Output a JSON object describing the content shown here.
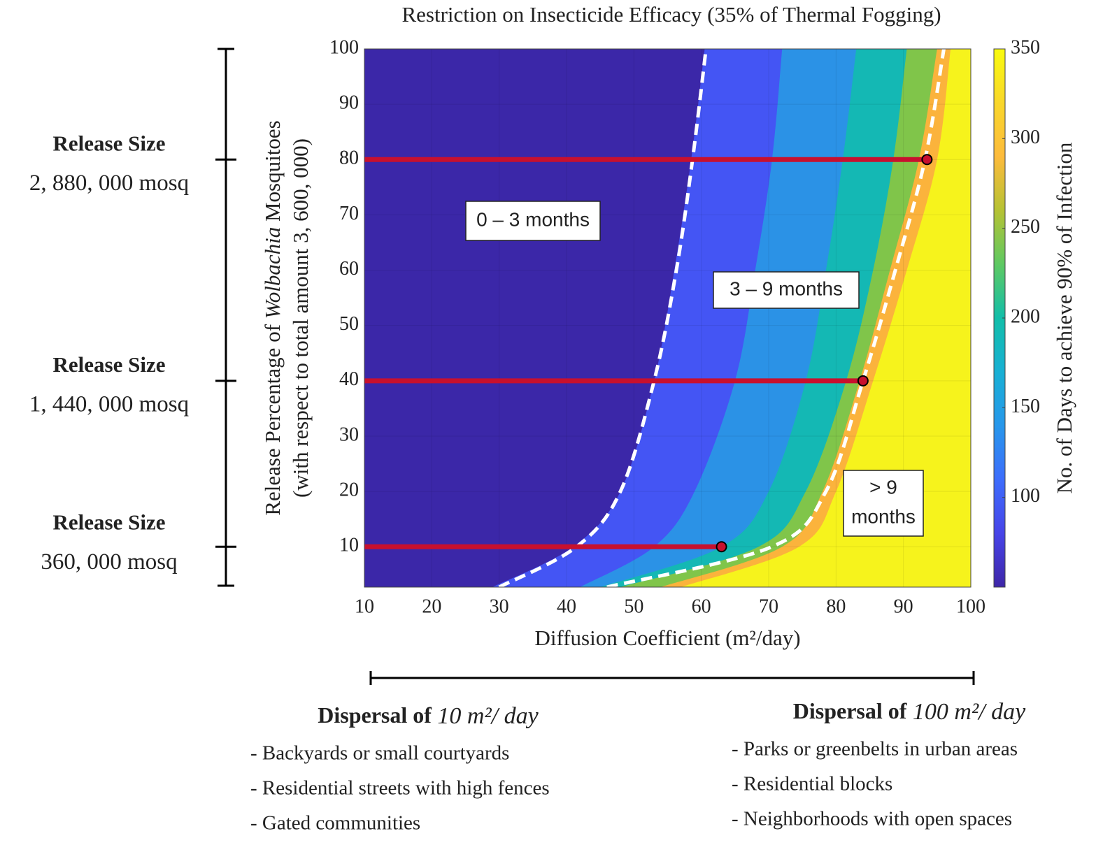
{
  "chart_data": {
    "type": "contour",
    "title": "Restriction on Insecticide Efficacy (35% of Thermal Fogging)",
    "xlabel": "Diffusion Coefficient (m²/day)",
    "ylabel": [
      "Release Percentage of",
      "Wolbachia",
      "Mosquitoes"
    ],
    "ylabel2": "(with respect to total amount 3, 600, 000)",
    "xlim": [
      10,
      100
    ],
    "ylim": [
      2.7,
      100
    ],
    "xticks": [
      10,
      20,
      30,
      40,
      50,
      60,
      70,
      80,
      90,
      100
    ],
    "yticks": [
      10,
      20,
      30,
      40,
      50,
      60,
      70,
      80,
      90,
      100
    ],
    "grid": true,
    "background_color": "#3b27a8",
    "y_levels": [
      2.7,
      10,
      20,
      40,
      60,
      80,
      100
    ],
    "bands": [
      {
        "color": "#4455f4",
        "x": [
          29,
          41,
          48,
          53,
          56,
          58.5,
          60.5
        ]
      },
      {
        "color": "#2b92e6",
        "x": [
          42,
          53,
          59,
          65,
          68,
          70.5,
          72
        ]
      },
      {
        "color": "#14b8b4",
        "x": [
          45,
          63,
          70,
          75.5,
          78.5,
          81,
          83
        ]
      },
      {
        "color": "#80c54a",
        "x": [
          48,
          68.5,
          75.5,
          81.5,
          85.5,
          88.5,
          90.5
        ]
      },
      {
        "color": "#fbb33c",
        "x": [
          54,
          72,
          78,
          83.5,
          88,
          92.3,
          95
        ]
      },
      {
        "color": "#f6f31c",
        "x": [
          57,
          74.5,
          80,
          85.5,
          90.5,
          95,
          97
        ]
      }
    ],
    "dashed_lines": [
      {
        "color": "#ffffff",
        "x": [
          30,
          41.5,
          48,
          53,
          56.3,
          58.7,
          60.7
        ]
      },
      {
        "color": "#ffffff",
        "x": [
          46,
          70.5,
          78.5,
          84,
          88.8,
          93.2,
          96
        ]
      }
    ],
    "release_lines": [
      {
        "y": 80,
        "x_end": 93.5
      },
      {
        "y": 40,
        "x_end": 84
      },
      {
        "y": 10,
        "x_end": 63
      }
    ],
    "line_color": "#c8102e",
    "annotations": [
      "0 – 3 months",
      "3 – 9 months",
      "> 9",
      "months"
    ],
    "colorbar": {
      "label": "No. of Days to achieve 90% of Infection",
      "lim": [
        50,
        350
      ],
      "ticks": [
        100,
        150,
        200,
        250,
        300,
        350
      ],
      "colormap": [
        "#3e26a8",
        "#4744e8",
        "#3d6dfc",
        "#2797eb",
        "#18b0d4",
        "#12bea9",
        "#5ec962",
        "#b6c234",
        "#fdbb3c",
        "#f9d72a",
        "#f9fb0e"
      ]
    },
    "release_sizes": [
      {
        "title": "Release Size",
        "size": "2, 880, 000 mosq"
      },
      {
        "title": "Release Size",
        "size": "1, 440, 000 mosq"
      },
      {
        "title": "Release Size",
        "size": "360, 000 mosq"
      }
    ],
    "dispersal": [
      {
        "heading": "Dispersal of",
        "rate": "10 m²/ day",
        "items": [
          "- Backyards or small courtyards",
          "- Residential streets with high fences",
          "- Gated communities"
        ]
      },
      {
        "heading": "Dispersal of",
        "rate": "100 m²/ day",
        "items": [
          "- Parks or greenbelts in urban areas",
          "- Residential blocks",
          "- Neighborhoods with open spaces"
        ]
      }
    ]
  }
}
